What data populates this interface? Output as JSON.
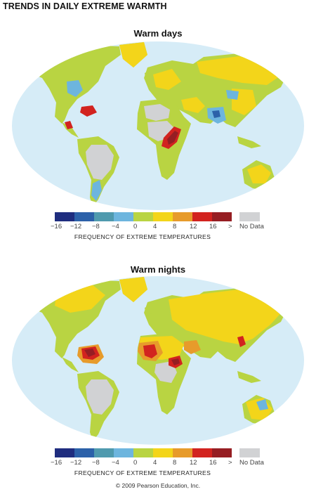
{
  "title": "TRENDS IN DAILY EXTREME WARMTH",
  "colors": {
    "ocean": "#d6ecf7",
    "no_data": "#d1d2d4",
    "scale": [
      "#1f2d7f",
      "#2c61a9",
      "#4f9aae",
      "#6db5de",
      "#b9d442",
      "#f3d51a",
      "#e79b2b",
      "#d2231f",
      "#961e23"
    ]
  },
  "legend": {
    "tick_labels": [
      "−16",
      "−12",
      "−8",
      "−4",
      "0",
      "4",
      "8",
      "12",
      "16",
      ">"
    ],
    "no_data_label": "No Data",
    "caption": "FREQUENCY OF EXTREME TEMPERATURES"
  },
  "maps": [
    {
      "title": "Warm days",
      "land_base": "#b9d442",
      "regions": [
        {
          "name": "south-america-no-data",
          "color": "#d1d2d4"
        },
        {
          "name": "central-africa-no-data",
          "color": "#d1d2d4"
        },
        {
          "name": "sahara-no-data",
          "color": "#d1d2d4"
        },
        {
          "name": "greenland",
          "color": "#f3d51a"
        },
        {
          "name": "siberia-warm",
          "color": "#f3d51a"
        },
        {
          "name": "east-asia-warm",
          "color": "#f3d51a"
        },
        {
          "name": "europe-warm",
          "color": "#f3d51a"
        },
        {
          "name": "middle-east-warm",
          "color": "#f3d51a"
        },
        {
          "name": "us-cool",
          "color": "#6db5de"
        },
        {
          "name": "patagonia-cool",
          "color": "#6db5de"
        },
        {
          "name": "india-cool",
          "color": "#6db5de"
        },
        {
          "name": "india-cold",
          "color": "#2c61a9"
        },
        {
          "name": "tibet-cool",
          "color": "#6db5de"
        },
        {
          "name": "australia-warm",
          "color": "#f3d51a"
        },
        {
          "name": "central-america-hot",
          "color": "#d2231f"
        },
        {
          "name": "colombia-hot",
          "color": "#d2231f"
        },
        {
          "name": "east-africa-hot",
          "color": "#d2231f"
        },
        {
          "name": "east-africa-hottest",
          "color": "#961e23"
        }
      ]
    },
    {
      "title": "Warm nights",
      "land_base": "#b9d442",
      "regions": [
        {
          "name": "south-america-no-data",
          "color": "#d1d2d4"
        },
        {
          "name": "central-africa-no-data",
          "color": "#d1d2d4"
        },
        {
          "name": "greenland",
          "color": "#f3d51a"
        },
        {
          "name": "eurasia-warm",
          "color": "#f3d51a"
        },
        {
          "name": "north-america-warm",
          "color": "#f3d51a"
        },
        {
          "name": "sahara-warm",
          "color": "#f3d51a"
        },
        {
          "name": "west-africa-orange",
          "color": "#e79b2b"
        },
        {
          "name": "west-africa-hot",
          "color": "#d2231f"
        },
        {
          "name": "arabia-orange",
          "color": "#e79b2b"
        },
        {
          "name": "amazon-orange",
          "color": "#e79b2b"
        },
        {
          "name": "amazon-hot",
          "color": "#d2231f"
        },
        {
          "name": "amazon-hottest",
          "color": "#961e23"
        },
        {
          "name": "east-africa-hot",
          "color": "#d2231f"
        },
        {
          "name": "east-africa-hottest",
          "color": "#961e23"
        },
        {
          "name": "se-asia-hot",
          "color": "#d2231f"
        },
        {
          "name": "australia-warm",
          "color": "#f3d51a"
        },
        {
          "name": "australia-cool",
          "color": "#6db5de"
        }
      ]
    }
  ],
  "copyright": "© 2009 Pearson Education, Inc."
}
